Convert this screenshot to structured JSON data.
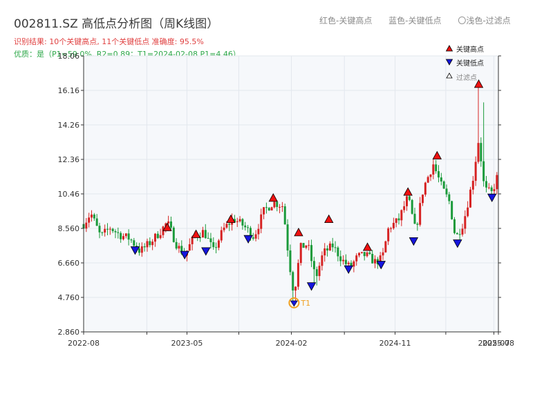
{
  "header": {
    "title": "002811.SZ 高低点分析图（周K线图）",
    "result_line": "识别结果: 10个关键高点, 11个关键低点  准确度: 95.5%",
    "quality_line": "优质：是（P1=59.0%, R2=0.89；T1=2024-02-08 P1=4.46）",
    "legend_top": [
      "红色-关键高点",
      "蓝色-关键低点",
      "〇浅色-过滤点"
    ]
  },
  "legend": {
    "high": "关键高点",
    "low": "关键低点",
    "filtered": "过滤点"
  },
  "colors": {
    "up": "#d62222",
    "down": "#1a9a3a",
    "high_marker": "#ee1111",
    "low_marker": "#1515dd",
    "t1_marker": "#f0a020"
  },
  "chart_data": {
    "type": "candlestick",
    "title": "002811.SZ 高低点分析图（周K线图）",
    "ylim": [
      2.86,
      18.06
    ],
    "y_ticks": [
      "2.860",
      "4.760",
      "6.660",
      "8.560",
      "10.46",
      "12.36",
      "14.26",
      "16.16",
      "18.06"
    ],
    "x_tick_labels": [
      "2022-08",
      "2023-05",
      "2024-02",
      "2024-11",
      "2025-07",
      "2025-08"
    ],
    "x_start": "2022-08-01",
    "x_end": "2025-08-01",
    "price_path": [
      [
        "2022-08-01",
        8.8
      ],
      [
        "2022-08-20",
        9.4
      ],
      [
        "2022-09-15",
        8.1
      ],
      [
        "2022-10-10",
        8.6
      ],
      [
        "2022-11-05",
        8.2
      ],
      [
        "2022-12-01",
        8.0
      ],
      [
        "2022-12-28",
        7.3
      ],
      [
        "2023-01-25",
        7.8
      ],
      [
        "2023-02-20",
        8.4
      ],
      [
        "2023-03-10",
        8.9
      ],
      [
        "2023-04-05",
        7.6
      ],
      [
        "2023-04-25",
        7.1
      ],
      [
        "2023-05-20",
        8.1
      ],
      [
        "2023-06-15",
        8.4
      ],
      [
        "2023-07-10",
        7.3
      ],
      [
        "2023-08-05",
        8.5
      ],
      [
        "2023-09-01",
        9.1
      ],
      [
        "2023-09-28",
        8.7
      ],
      [
        "2023-10-25",
        8.1
      ],
      [
        "2023-11-20",
        9.5
      ],
      [
        "2023-12-15",
        10.0
      ],
      [
        "2024-01-10",
        9.8
      ],
      [
        "2024-01-25",
        6.9
      ],
      [
        "2024-02-08",
        4.9
      ],
      [
        "2024-02-25",
        7.5
      ],
      [
        "2024-03-15",
        7.7
      ],
      [
        "2024-04-05",
        5.8
      ],
      [
        "2024-04-25",
        7.2
      ],
      [
        "2024-05-20",
        7.6
      ],
      [
        "2024-06-15",
        6.8
      ],
      [
        "2024-07-05",
        6.4
      ],
      [
        "2024-07-25",
        7.0
      ],
      [
        "2024-08-15",
        7.1
      ],
      [
        "2024-09-10",
        6.7
      ],
      [
        "2024-09-28",
        6.9
      ],
      [
        "2024-10-15",
        8.6
      ],
      [
        "2024-11-10",
        9.0
      ],
      [
        "2024-12-05",
        10.3
      ],
      [
        "2024-12-25",
        8.4
      ],
      [
        "2025-01-15",
        10.8
      ],
      [
        "2025-02-10",
        12.1
      ],
      [
        "2025-03-05",
        10.8
      ],
      [
        "2025-03-25",
        10.0
      ],
      [
        "2025-04-10",
        8.0
      ],
      [
        "2025-05-01",
        8.9
      ],
      [
        "2025-05-25",
        11.2
      ],
      [
        "2025-06-10",
        13.5
      ],
      [
        "2025-06-25",
        10.7
      ],
      [
        "2025-07-15",
        10.5
      ],
      [
        "2025-08-01",
        11.6
      ]
    ],
    "key_highs": [
      [
        "2023-03-10",
        8.58
      ],
      [
        "2023-05-25",
        8.2
      ],
      [
        "2023-08-25",
        9.03
      ],
      [
        "2023-12-15",
        10.2
      ],
      [
        "2024-02-20",
        8.3
      ],
      [
        "2024-05-10",
        9.03
      ],
      [
        "2024-08-20",
        7.49
      ],
      [
        "2024-12-05",
        10.53
      ],
      [
        "2025-02-20",
        12.53
      ],
      [
        "2025-06-10",
        16.47
      ]
    ],
    "key_lows": [
      [
        "2022-12-15",
        7.4
      ],
      [
        "2023-04-25",
        7.15
      ],
      [
        "2023-06-20",
        7.35
      ],
      [
        "2023-10-10",
        8.02
      ],
      [
        "2024-03-25",
        5.42
      ],
      [
        "2024-07-01",
        6.35
      ],
      [
        "2024-09-25",
        6.6
      ],
      [
        "2024-12-20",
        7.9
      ],
      [
        "2025-04-15",
        7.78
      ],
      [
        "2025-07-15",
        10.3
      ]
    ],
    "t1": {
      "date": "2024-02-08",
      "price": 4.46,
      "label": "T1"
    }
  }
}
